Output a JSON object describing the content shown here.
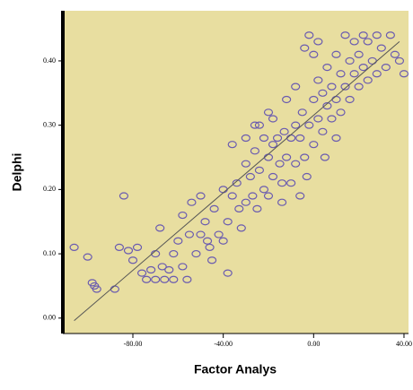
{
  "chart_data": {
    "type": "scatter",
    "x_label": "Factor Analys",
    "y_label": "Delphi",
    "xlim": [
      -111,
      42
    ],
    "ylim": [
      -0.024,
      0.478
    ],
    "xticks": [
      {
        "value": -80,
        "label": "-80.00"
      },
      {
        "value": -40,
        "label": "-40.00"
      },
      {
        "value": 0,
        "label": "0.00"
      },
      {
        "value": 40,
        "label": "40.00"
      }
    ],
    "yticks": [
      {
        "value": 0,
        "label": "0.00"
      },
      {
        "value": 0.1,
        "label": "0.10"
      },
      {
        "value": 0.2,
        "label": "0.20"
      },
      {
        "value": 0.3,
        "label": "0.30"
      },
      {
        "value": 0.4,
        "label": "0.40"
      }
    ],
    "background": "#e8dea0",
    "color": "#6a5bb0",
    "line_color": "#555555",
    "x": [
      -106,
      -100,
      -98,
      -97,
      -96,
      -88,
      -86,
      -84,
      -82,
      -80,
      -78,
      -76,
      -74,
      -72,
      -70,
      -70,
      -68,
      -67,
      -66,
      -64,
      -62,
      -62,
      -60,
      -58,
      -58,
      -56,
      -55,
      -54,
      -52,
      -50,
      -50,
      -48,
      -47,
      -46,
      -45,
      -44,
      -42,
      -40,
      -40,
      -38,
      -38,
      -36,
      -34,
      -33,
      -32,
      -30,
      -30,
      -28,
      -27,
      -26,
      -25,
      -24,
      -22,
      -22,
      -20,
      -20,
      -18,
      -18,
      -16,
      -15,
      -14,
      -13,
      -12,
      -10,
      -10,
      -8,
      -8,
      -6,
      -5,
      -4,
      -3,
      -2,
      0,
      0,
      2,
      2,
      4,
      4,
      5,
      6,
      6,
      8,
      8,
      10,
      10,
      12,
      12,
      14,
      14,
      16,
      16,
      18,
      18,
      20,
      20,
      22,
      22,
      24,
      24,
      26,
      28,
      28,
      30,
      32,
      34,
      36,
      38,
      40,
      -4,
      -2,
      0,
      -30,
      -26,
      -36,
      -20,
      -12,
      -8,
      2,
      -14,
      -6,
      10,
      -24,
      -18
    ],
    "values": [
      0.11,
      0.095,
      0.055,
      0.05,
      0.045,
      0.045,
      0.11,
      0.19,
      0.105,
      0.09,
      0.11,
      0.07,
      0.06,
      0.075,
      0.1,
      0.06,
      0.14,
      0.08,
      0.06,
      0.075,
      0.1,
      0.06,
      0.12,
      0.16,
      0.08,
      0.06,
      0.13,
      0.18,
      0.1,
      0.19,
      0.13,
      0.15,
      0.12,
      0.11,
      0.09,
      0.17,
      0.13,
      0.12,
      0.2,
      0.15,
      0.07,
      0.19,
      0.21,
      0.17,
      0.14,
      0.24,
      0.18,
      0.22,
      0.19,
      0.26,
      0.17,
      0.23,
      0.28,
      0.2,
      0.25,
      0.19,
      0.27,
      0.22,
      0.28,
      0.24,
      0.21,
      0.29,
      0.25,
      0.28,
      0.21,
      0.24,
      0.3,
      0.28,
      0.32,
      0.25,
      0.22,
      0.3,
      0.27,
      0.34,
      0.31,
      0.37,
      0.29,
      0.35,
      0.25,
      0.33,
      0.39,
      0.36,
      0.31,
      0.41,
      0.34,
      0.38,
      0.32,
      0.44,
      0.36,
      0.4,
      0.34,
      0.43,
      0.38,
      0.41,
      0.36,
      0.44,
      0.39,
      0.37,
      0.43,
      0.4,
      0.44,
      0.38,
      0.42,
      0.39,
      0.44,
      0.41,
      0.4,
      0.38,
      0.42,
      0.44,
      0.41,
      0.28,
      0.3,
      0.27,
      0.32,
      0.34,
      0.36,
      0.43,
      0.18,
      0.19,
      0.28,
      0.3,
      0.31
    ],
    "fit_line": {
      "x": [
        -106,
        38
      ],
      "values": [
        -0.004,
        0.43
      ]
    }
  }
}
